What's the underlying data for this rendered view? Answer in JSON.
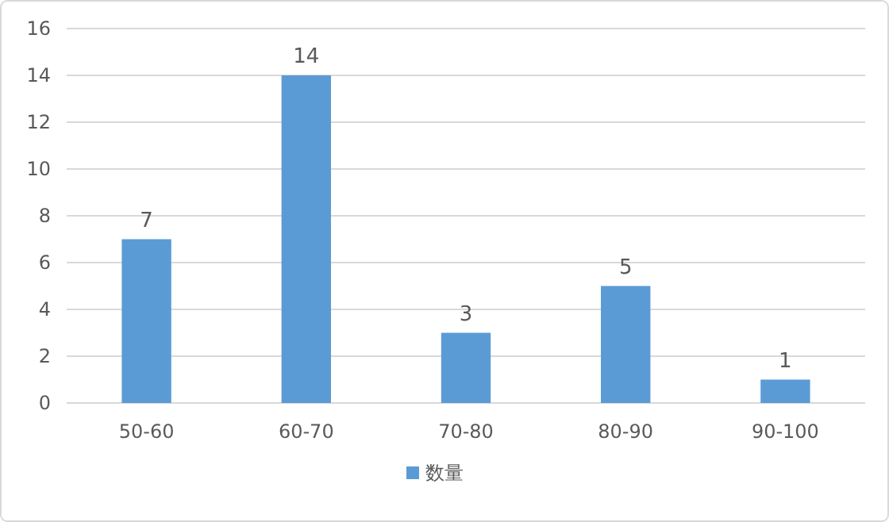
{
  "chart_data": {
    "type": "bar",
    "categories": [
      "50-60",
      "60-70",
      "70-80",
      "80-90",
      "90-100"
    ],
    "series": [
      {
        "name": "数量",
        "color": "#5b9bd5",
        "values": [
          7,
          14,
          3,
          5,
          1
        ]
      }
    ],
    "ylim": [
      0,
      16
    ],
    "yticks": [
      0,
      2,
      4,
      6,
      8,
      10,
      12,
      14,
      16
    ],
    "grid": "y",
    "legend": "bottom",
    "data_labels": true
  }
}
